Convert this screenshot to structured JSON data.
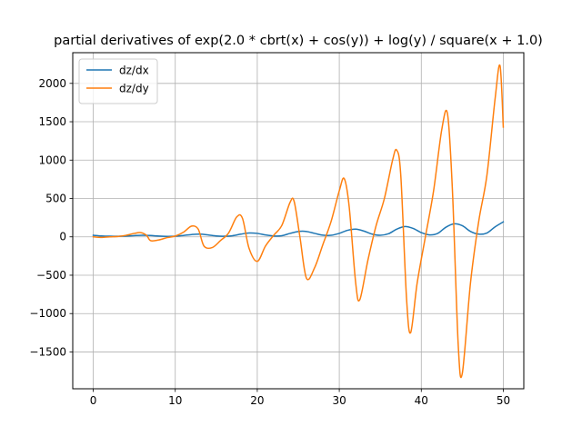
{
  "chart_data": {
    "type": "line",
    "title": "partial derivatives of exp(2.0 * cbrt(x) + cos(y)) + log(y) / square(x + 1.0)",
    "xlabel": "",
    "ylabel": "",
    "xlim": [
      -2.5,
      52.5
    ],
    "ylim": [
      -1980,
      2400
    ],
    "xticks": [
      0,
      10,
      20,
      30,
      40,
      50
    ],
    "yticks": [
      -1500,
      -1000,
      -500,
      0,
      500,
      1000,
      1500,
      2000
    ],
    "grid": true,
    "legend": "top-left",
    "series": [
      {
        "name": "dz/dx",
        "color": "#1f77b4",
        "x": [
          0,
          1,
          2,
          3,
          4,
          5,
          6,
          7,
          8,
          9,
          10,
          11,
          12,
          13,
          14,
          15,
          16,
          17,
          18,
          19,
          20,
          21,
          22,
          23,
          24,
          25,
          26,
          27,
          28,
          29,
          30,
          31,
          32,
          33,
          34,
          35,
          36,
          37,
          38,
          39,
          40,
          41,
          42,
          43,
          44,
          45,
          46,
          47,
          48,
          49,
          50
        ],
        "y": [
          20,
          12,
          8,
          7,
          10,
          16,
          20,
          17,
          10,
          6,
          8,
          18,
          30,
          35,
          25,
          12,
          8,
          15,
          35,
          50,
          45,
          25,
          12,
          15,
          45,
          70,
          70,
          45,
          22,
          20,
          45,
          85,
          100,
          75,
          35,
          20,
          40,
          100,
          135,
          110,
          55,
          25,
          45,
          125,
          170,
          145,
          70,
          35,
          50,
          130,
          195
        ]
      },
      {
        "name": "dz/dy",
        "color": "#ff7f0e",
        "x": [
          0,
          1,
          2,
          3,
          4,
          5,
          5.8,
          6.5,
          7,
          8,
          9,
          10,
          11,
          12,
          12.8,
          13.5,
          14.5,
          15.5,
          16.5,
          17.5,
          18.2,
          19,
          20,
          21,
          22,
          23,
          24,
          24.5,
          25.2,
          26,
          27,
          28,
          29,
          30,
          30.6,
          31.2,
          32,
          32.5,
          33.5,
          34.5,
          35.5,
          36.5,
          37,
          37.5,
          38.2,
          38.7,
          39.5,
          40.5,
          41.5,
          42.5,
          43.2,
          43.8,
          44.5,
          45,
          46,
          47,
          48,
          49,
          49.6,
          50
        ],
        "y": [
          0,
          -8,
          0,
          5,
          20,
          45,
          55,
          20,
          -50,
          -40,
          -10,
          10,
          60,
          140,
          100,
          -120,
          -140,
          -50,
          50,
          260,
          240,
          -150,
          -320,
          -120,
          20,
          150,
          450,
          460,
          0,
          -540,
          -400,
          -100,
          200,
          600,
          760,
          400,
          -600,
          -820,
          -300,
          150,
          500,
          1000,
          1130,
          800,
          -800,
          -1250,
          -600,
          0,
          600,
          1400,
          1600,
          600,
          -1400,
          -1780,
          -600,
          200,
          800,
          1800,
          2230,
          1430
        ]
      }
    ]
  }
}
